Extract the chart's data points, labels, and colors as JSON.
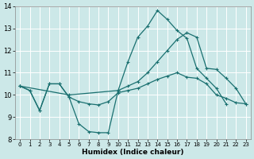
{
  "xlabel": "Humidex (Indice chaleur)",
  "bg_color": "#cce8e8",
  "grid_color": "#ffffff",
  "line_color": "#1a7070",
  "line1": {
    "x": [
      0,
      1,
      2,
      3,
      4,
      5,
      6,
      7,
      8,
      9,
      10,
      11,
      12,
      13,
      14,
      15,
      16,
      17,
      18,
      19,
      20,
      21
    ],
    "y": [
      10.4,
      10.2,
      9.3,
      10.5,
      10.5,
      9.9,
      8.7,
      8.35,
      8.3,
      8.3,
      10.2,
      11.5,
      12.6,
      13.1,
      13.8,
      13.4,
      12.9,
      12.55,
      11.2,
      10.75,
      10.3,
      9.6
    ]
  },
  "line2": {
    "x": [
      0,
      5,
      10,
      11,
      12,
      13,
      14,
      15,
      16,
      17,
      18,
      19,
      20,
      21,
      22,
      23
    ],
    "y": [
      10.4,
      10.0,
      10.2,
      10.4,
      10.6,
      11.0,
      11.5,
      12.0,
      12.5,
      12.8,
      12.6,
      11.2,
      11.15,
      10.75,
      10.3,
      9.6
    ]
  },
  "line3": {
    "x": [
      0,
      1,
      2,
      3,
      4,
      5,
      6,
      7,
      8,
      9,
      10,
      11,
      12,
      13,
      14,
      15,
      16,
      17,
      18,
      19,
      20,
      21,
      22,
      23
    ],
    "y": [
      10.4,
      10.2,
      9.3,
      10.5,
      10.5,
      9.9,
      9.7,
      9.6,
      9.55,
      9.7,
      10.1,
      10.2,
      10.3,
      10.5,
      10.7,
      10.85,
      11.0,
      10.8,
      10.75,
      10.5,
      10.0,
      9.85,
      9.65,
      9.6
    ]
  },
  "line4": {
    "x": [
      0,
      2,
      3,
      5,
      6,
      7,
      8,
      9,
      10
    ],
    "y": [
      10.4,
      9.3,
      9.5,
      9.9,
      8.7,
      8.35,
      8.3,
      8.3,
      10.0
    ]
  },
  "xlim": [
    -0.5,
    23.5
  ],
  "ylim": [
    8,
    14
  ],
  "xticks": [
    0,
    1,
    2,
    3,
    4,
    5,
    6,
    7,
    8,
    9,
    10,
    11,
    12,
    13,
    14,
    15,
    16,
    17,
    18,
    19,
    20,
    21,
    22,
    23
  ],
  "yticks": [
    8,
    9,
    10,
    11,
    12,
    13,
    14
  ]
}
